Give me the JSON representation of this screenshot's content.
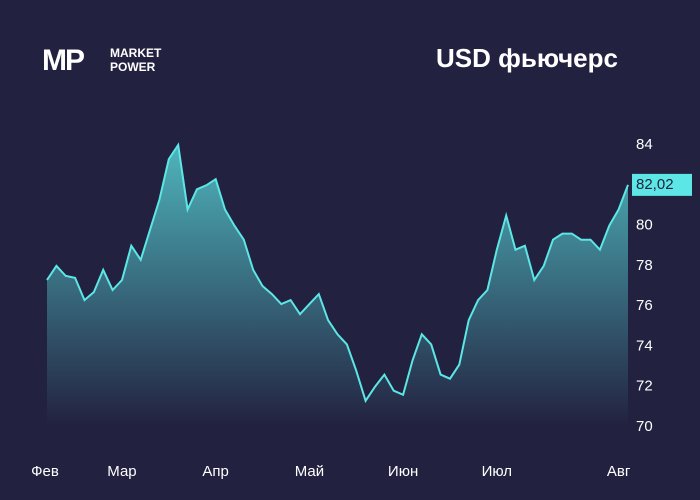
{
  "logo": {
    "mark": "MP",
    "line1": "MARKET",
    "line2": "POWER"
  },
  "chart_data": {
    "type": "area",
    "title": "USD фьючерс",
    "categories": [
      "Фев",
      null,
      null,
      null,
      null,
      null,
      null,
      null,
      "Мар",
      null,
      null,
      null,
      null,
      null,
      null,
      null,
      null,
      null,
      "Апр",
      null,
      null,
      null,
      null,
      null,
      null,
      null,
      null,
      null,
      "Май",
      null,
      null,
      null,
      null,
      null,
      null,
      null,
      null,
      null,
      "Июн",
      null,
      null,
      null,
      null,
      null,
      null,
      null,
      null,
      null,
      "Июл",
      null,
      null,
      null,
      null,
      null,
      null,
      null,
      null,
      null,
      null,
      null,
      null,
      "Авг",
      null
    ],
    "values": [
      77.3,
      78.0,
      77.5,
      77.4,
      76.3,
      76.7,
      77.8,
      76.8,
      77.3,
      79.0,
      78.3,
      79.8,
      81.3,
      83.3,
      84.0,
      80.8,
      81.8,
      82.0,
      82.3,
      80.8,
      80.0,
      79.3,
      77.8,
      77.0,
      76.6,
      76.1,
      76.3,
      75.6,
      76.1,
      76.6,
      75.3,
      74.6,
      74.1,
      72.8,
      71.3,
      72.0,
      72.6,
      71.8,
      71.6,
      73.3,
      74.6,
      74.1,
      72.6,
      72.4,
      73.1,
      75.3,
      76.3,
      76.8,
      78.8,
      80.5,
      78.8,
      79.0,
      77.3,
      78.0,
      79.3,
      79.6,
      79.6,
      79.3,
      79.3,
      78.8,
      80.0,
      80.8,
      82.02
    ],
    "value_labels": [
      null,
      null,
      null,
      null,
      null,
      null,
      null,
      null,
      null,
      null,
      null,
      null,
      null,
      null,
      null,
      null,
      null,
      null,
      null,
      null,
      null,
      null,
      null,
      null,
      null,
      null,
      null,
      null,
      null,
      null,
      null,
      null,
      null,
      null,
      null,
      null,
      null,
      null,
      null,
      null,
      null,
      null,
      null,
      null,
      null,
      null,
      null,
      null,
      null,
      null,
      null,
      null,
      null,
      null,
      null,
      null,
      null,
      null,
      null,
      null,
      null,
      null,
      "82,02"
    ],
    "color": "#5de6e6",
    "ylim": [
      70,
      84
    ],
    "yticks": [
      70,
      72,
      74,
      76,
      78,
      80,
      82,
      84
    ]
  }
}
